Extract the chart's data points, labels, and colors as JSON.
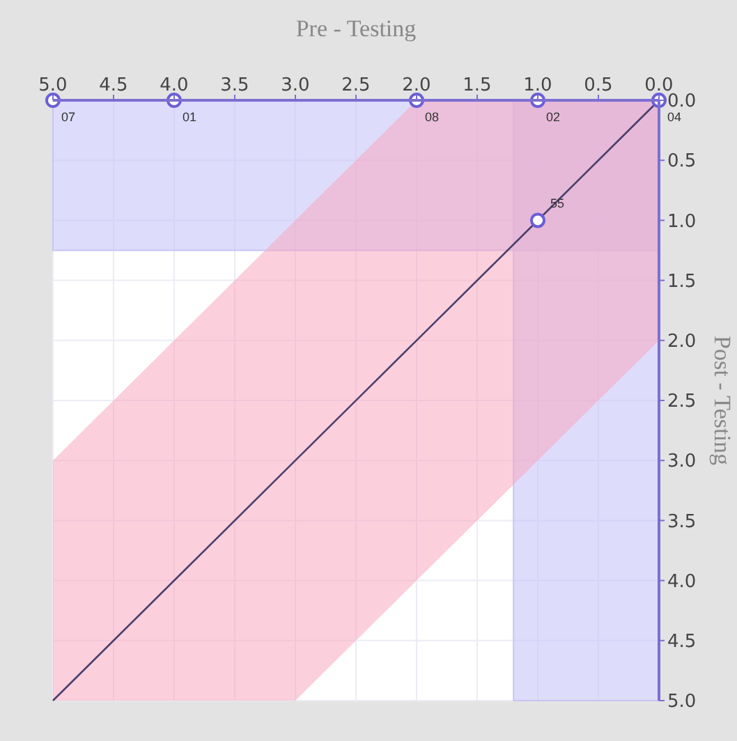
{
  "chart_data": {
    "type": "scatter",
    "xlabel": "Pre - Testing",
    "ylabel": "Post - Testing",
    "xlim": [
      5,
      0
    ],
    "ylim": [
      5,
      0
    ],
    "xticks": [
      {
        "value": 5,
        "label": "5.0"
      },
      4.5,
      {
        "value": 4,
        "label": "4.0"
      },
      3.5,
      {
        "value": 3,
        "label": "3.0"
      },
      2.5,
      {
        "value": 2,
        "label": "2.0"
      },
      1.5,
      {
        "value": 1,
        "label": "1.0"
      },
      0.5,
      {
        "value": 0,
        "label": "0.0"
      }
    ],
    "yticks": [
      {
        "value": 0,
        "label": "0.0"
      },
      0.5,
      {
        "value": 1,
        "label": "1.0"
      },
      1.5,
      {
        "value": 2,
        "label": "2.0"
      },
      2.5,
      {
        "value": 3,
        "label": "3.0"
      },
      3.5,
      {
        "value": 4,
        "label": "4.0"
      },
      4.5,
      {
        "value": 5,
        "label": "5.0"
      }
    ],
    "grid": true,
    "bands": [
      {
        "axis": "y",
        "from": 0,
        "to": 1.25,
        "color": "#c8c4f8"
      },
      {
        "axis": "x",
        "from": 0,
        "to": 1.2,
        "color": "#c8c4f8"
      }
    ],
    "series": [
      {
        "type": "line",
        "color": "#4a3f6b",
        "x": [
          0,
          2,
          3,
          5
        ],
        "values": [
          0,
          2,
          3,
          5
        ],
        "lower": [
          0,
          0,
          1,
          3
        ],
        "upper": [
          2,
          4,
          5,
          5
        ]
      },
      {
        "color": "#6b5fd6",
        "marker": "circle",
        "x": [
          5,
          4,
          2,
          1,
          0,
          1
        ],
        "values": [
          0,
          0,
          0,
          0,
          0,
          1
        ]
      }
    ],
    "annotations": [
      {
        "text": "07",
        "x": 5,
        "y": 0
      },
      {
        "text": "01",
        "x": 4,
        "y": 0
      },
      {
        "text": "08",
        "x": 2,
        "y": 0
      },
      {
        "text": "02",
        "x": 1,
        "y": 0
      },
      {
        "text": "04",
        "x": 0,
        "y": 0
      },
      {
        "text": "55",
        "x": 1,
        "y": 1
      }
    ]
  }
}
